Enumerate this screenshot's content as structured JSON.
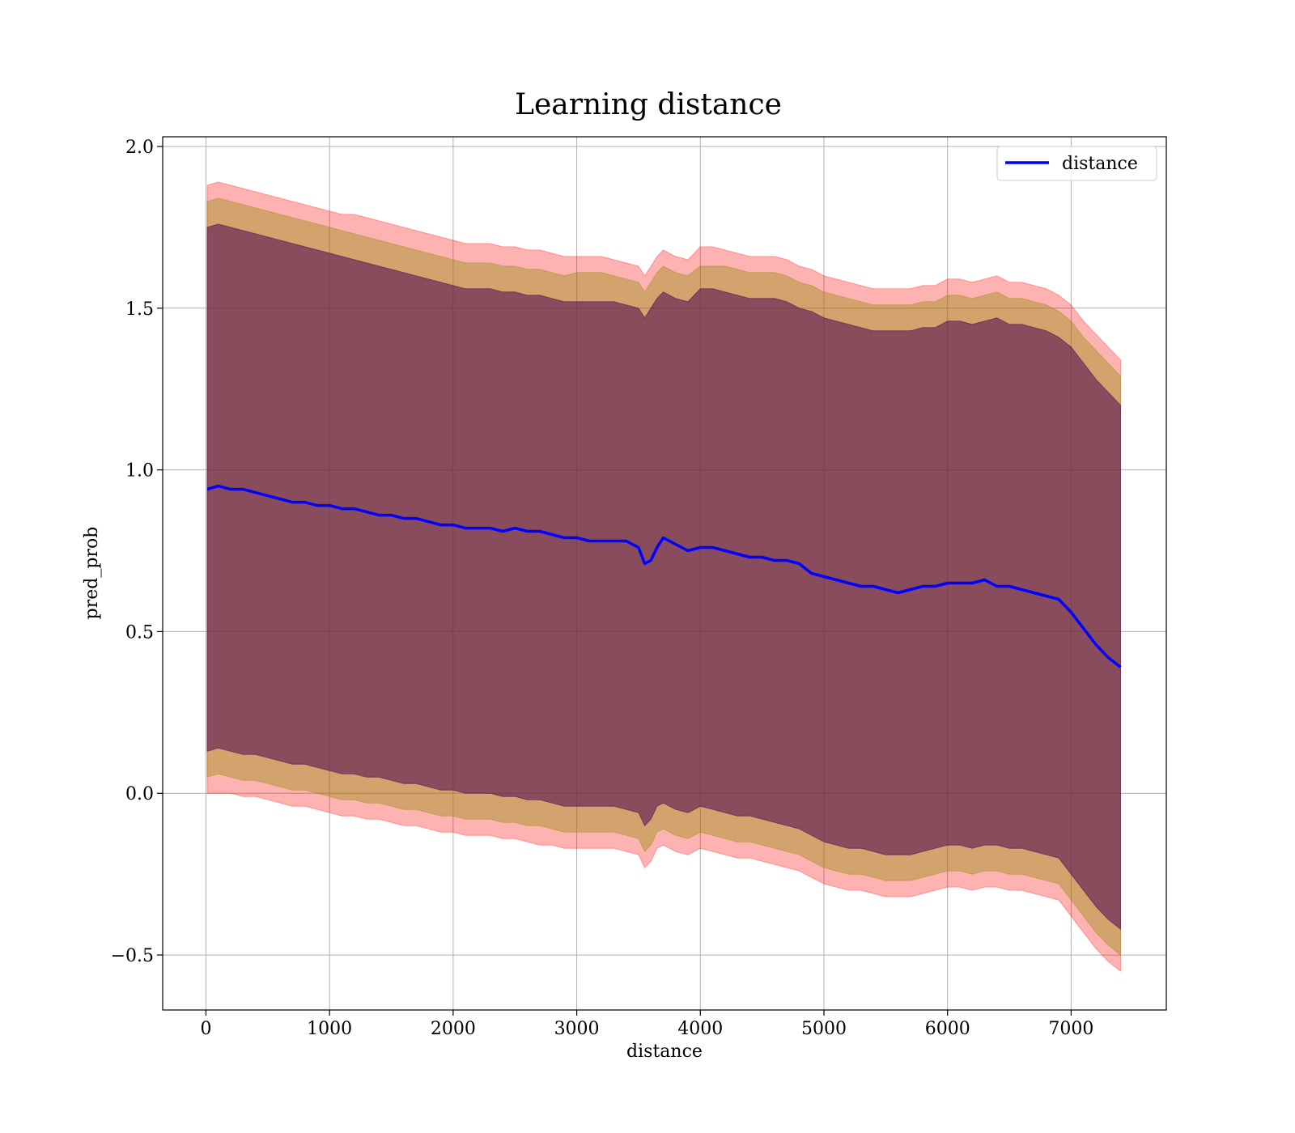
{
  "chart_data": {
    "type": "line",
    "title": "Learning distance",
    "xlabel": "distance",
    "ylabel": "pred_prob",
    "xlim": [
      -350,
      7770
    ],
    "ylim": [
      -0.67,
      2.03
    ],
    "xticks": [
      0,
      1000,
      2000,
      3000,
      4000,
      5000,
      6000,
      7000
    ],
    "yticks": [
      -0.5,
      0.0,
      0.5,
      1.0,
      1.5,
      2.0
    ],
    "xtick_labels": [
      "0",
      "1000",
      "2000",
      "3000",
      "4000",
      "5000",
      "6000",
      "7000"
    ],
    "ytick_labels": [
      "−0.5",
      "0.0",
      "0.5",
      "1.0",
      "1.5",
      "2.0"
    ],
    "grid": true,
    "legend": {
      "position": "top-right",
      "entries": [
        "distance"
      ]
    },
    "colors": {
      "line": "#0000ff",
      "band_outer": "#ff0000",
      "band_middle": "#8c8c00",
      "band_inner": "#5a1650"
    },
    "series": [
      {
        "name": "distance",
        "x": [
          10,
          100,
          200,
          300,
          400,
          500,
          600,
          700,
          800,
          900,
          1000,
          1100,
          1200,
          1300,
          1400,
          1500,
          1600,
          1700,
          1800,
          1900,
          2000,
          2100,
          2200,
          2300,
          2400,
          2500,
          2600,
          2700,
          2800,
          2900,
          3000,
          3100,
          3200,
          3300,
          3400,
          3500,
          3550,
          3600,
          3650,
          3700,
          3800,
          3900,
          4000,
          4100,
          4200,
          4300,
          4400,
          4500,
          4600,
          4700,
          4800,
          4900,
          5000,
          5100,
          5200,
          5300,
          5400,
          5500,
          5600,
          5700,
          5800,
          5900,
          6000,
          6100,
          6200,
          6300,
          6400,
          6500,
          6600,
          6700,
          6800,
          6900,
          7000,
          7100,
          7200,
          7300,
          7400
        ],
        "y": [
          0.94,
          0.95,
          0.94,
          0.94,
          0.93,
          0.92,
          0.91,
          0.9,
          0.9,
          0.89,
          0.89,
          0.88,
          0.88,
          0.87,
          0.86,
          0.86,
          0.85,
          0.85,
          0.84,
          0.83,
          0.83,
          0.82,
          0.82,
          0.82,
          0.81,
          0.82,
          0.81,
          0.81,
          0.8,
          0.79,
          0.79,
          0.78,
          0.78,
          0.78,
          0.78,
          0.76,
          0.71,
          0.72,
          0.76,
          0.79,
          0.77,
          0.75,
          0.76,
          0.76,
          0.75,
          0.74,
          0.73,
          0.73,
          0.72,
          0.72,
          0.71,
          0.68,
          0.67,
          0.66,
          0.65,
          0.64,
          0.64,
          0.63,
          0.62,
          0.63,
          0.64,
          0.64,
          0.65,
          0.65,
          0.65,
          0.66,
          0.64,
          0.64,
          0.63,
          0.62,
          0.61,
          0.6,
          0.56,
          0.51,
          0.46,
          0.42,
          0.39
        ],
        "band_outer_upper": [
          1.88,
          1.89,
          1.88,
          1.87,
          1.86,
          1.85,
          1.84,
          1.83,
          1.82,
          1.81,
          1.8,
          1.79,
          1.79,
          1.78,
          1.77,
          1.76,
          1.75,
          1.74,
          1.73,
          1.72,
          1.71,
          1.7,
          1.7,
          1.7,
          1.69,
          1.69,
          1.68,
          1.68,
          1.67,
          1.66,
          1.66,
          1.66,
          1.66,
          1.65,
          1.64,
          1.63,
          1.6,
          1.63,
          1.66,
          1.68,
          1.66,
          1.65,
          1.69,
          1.69,
          1.68,
          1.67,
          1.66,
          1.66,
          1.66,
          1.65,
          1.63,
          1.62,
          1.6,
          1.59,
          1.58,
          1.57,
          1.56,
          1.56,
          1.56,
          1.56,
          1.57,
          1.57,
          1.59,
          1.59,
          1.58,
          1.59,
          1.6,
          1.58,
          1.58,
          1.57,
          1.56,
          1.54,
          1.51,
          1.46,
          1.42,
          1.38,
          1.34
        ],
        "band_outer_lower": [
          0.0,
          0.0,
          0.0,
          -0.01,
          -0.01,
          -0.02,
          -0.03,
          -0.04,
          -0.04,
          -0.05,
          -0.06,
          -0.07,
          -0.07,
          -0.08,
          -0.08,
          -0.09,
          -0.1,
          -0.1,
          -0.11,
          -0.12,
          -0.12,
          -0.13,
          -0.13,
          -0.13,
          -0.14,
          -0.14,
          -0.15,
          -0.16,
          -0.16,
          -0.17,
          -0.17,
          -0.17,
          -0.17,
          -0.17,
          -0.18,
          -0.19,
          -0.23,
          -0.21,
          -0.17,
          -0.16,
          -0.18,
          -0.19,
          -0.17,
          -0.18,
          -0.19,
          -0.2,
          -0.2,
          -0.21,
          -0.22,
          -0.23,
          -0.24,
          -0.26,
          -0.28,
          -0.29,
          -0.3,
          -0.3,
          -0.31,
          -0.32,
          -0.32,
          -0.32,
          -0.31,
          -0.3,
          -0.29,
          -0.29,
          -0.3,
          -0.29,
          -0.29,
          -0.3,
          -0.3,
          -0.31,
          -0.32,
          -0.33,
          -0.38,
          -0.43,
          -0.48,
          -0.52,
          -0.55
        ],
        "band_middle_upper": [
          1.83,
          1.84,
          1.83,
          1.82,
          1.81,
          1.8,
          1.79,
          1.78,
          1.77,
          1.76,
          1.75,
          1.74,
          1.73,
          1.72,
          1.71,
          1.7,
          1.69,
          1.68,
          1.67,
          1.66,
          1.65,
          1.64,
          1.64,
          1.64,
          1.63,
          1.63,
          1.62,
          1.62,
          1.61,
          1.6,
          1.61,
          1.61,
          1.61,
          1.6,
          1.59,
          1.58,
          1.55,
          1.58,
          1.61,
          1.63,
          1.61,
          1.6,
          1.63,
          1.63,
          1.63,
          1.62,
          1.61,
          1.61,
          1.61,
          1.6,
          1.58,
          1.57,
          1.55,
          1.54,
          1.53,
          1.52,
          1.51,
          1.51,
          1.51,
          1.51,
          1.52,
          1.52,
          1.54,
          1.54,
          1.53,
          1.54,
          1.55,
          1.53,
          1.53,
          1.52,
          1.51,
          1.49,
          1.46,
          1.41,
          1.37,
          1.33,
          1.29
        ],
        "band_middle_lower": [
          0.05,
          0.06,
          0.05,
          0.04,
          0.04,
          0.03,
          0.02,
          0.01,
          0.01,
          0.0,
          -0.01,
          -0.02,
          -0.02,
          -0.03,
          -0.03,
          -0.04,
          -0.05,
          -0.05,
          -0.06,
          -0.07,
          -0.07,
          -0.08,
          -0.08,
          -0.08,
          -0.09,
          -0.09,
          -0.1,
          -0.1,
          -0.11,
          -0.12,
          -0.12,
          -0.12,
          -0.12,
          -0.12,
          -0.13,
          -0.14,
          -0.18,
          -0.16,
          -0.12,
          -0.11,
          -0.13,
          -0.14,
          -0.12,
          -0.13,
          -0.14,
          -0.15,
          -0.15,
          -0.16,
          -0.17,
          -0.18,
          -0.19,
          -0.21,
          -0.23,
          -0.24,
          -0.25,
          -0.25,
          -0.26,
          -0.27,
          -0.27,
          -0.27,
          -0.26,
          -0.25,
          -0.24,
          -0.24,
          -0.25,
          -0.24,
          -0.24,
          -0.25,
          -0.25,
          -0.26,
          -0.27,
          -0.28,
          -0.33,
          -0.38,
          -0.43,
          -0.47,
          -0.5
        ],
        "band_inner_upper": [
          1.75,
          1.76,
          1.75,
          1.74,
          1.73,
          1.72,
          1.71,
          1.7,
          1.69,
          1.68,
          1.67,
          1.66,
          1.65,
          1.64,
          1.63,
          1.62,
          1.61,
          1.6,
          1.59,
          1.58,
          1.57,
          1.56,
          1.56,
          1.56,
          1.55,
          1.55,
          1.54,
          1.54,
          1.53,
          1.52,
          1.52,
          1.52,
          1.52,
          1.52,
          1.51,
          1.5,
          1.47,
          1.5,
          1.53,
          1.55,
          1.53,
          1.52,
          1.56,
          1.56,
          1.55,
          1.54,
          1.53,
          1.53,
          1.53,
          1.52,
          1.5,
          1.49,
          1.47,
          1.46,
          1.45,
          1.44,
          1.43,
          1.43,
          1.43,
          1.43,
          1.44,
          1.44,
          1.46,
          1.46,
          1.45,
          1.46,
          1.47,
          1.45,
          1.45,
          1.44,
          1.43,
          1.41,
          1.38,
          1.33,
          1.28,
          1.24,
          1.2
        ],
        "band_inner_lower": [
          0.13,
          0.14,
          0.13,
          0.12,
          0.12,
          0.11,
          0.1,
          0.09,
          0.09,
          0.08,
          0.07,
          0.06,
          0.06,
          0.05,
          0.05,
          0.04,
          0.03,
          0.03,
          0.02,
          0.01,
          0.01,
          0.0,
          0.0,
          0.0,
          -0.01,
          -0.01,
          -0.02,
          -0.02,
          -0.03,
          -0.04,
          -0.04,
          -0.04,
          -0.04,
          -0.04,
          -0.05,
          -0.06,
          -0.1,
          -0.08,
          -0.04,
          -0.03,
          -0.05,
          -0.06,
          -0.04,
          -0.05,
          -0.06,
          -0.07,
          -0.07,
          -0.08,
          -0.09,
          -0.1,
          -0.11,
          -0.13,
          -0.15,
          -0.16,
          -0.17,
          -0.17,
          -0.18,
          -0.19,
          -0.19,
          -0.19,
          -0.18,
          -0.17,
          -0.16,
          -0.16,
          -0.17,
          -0.16,
          -0.16,
          -0.17,
          -0.17,
          -0.18,
          -0.19,
          -0.2,
          -0.25,
          -0.3,
          -0.35,
          -0.39,
          -0.42
        ]
      }
    ]
  }
}
